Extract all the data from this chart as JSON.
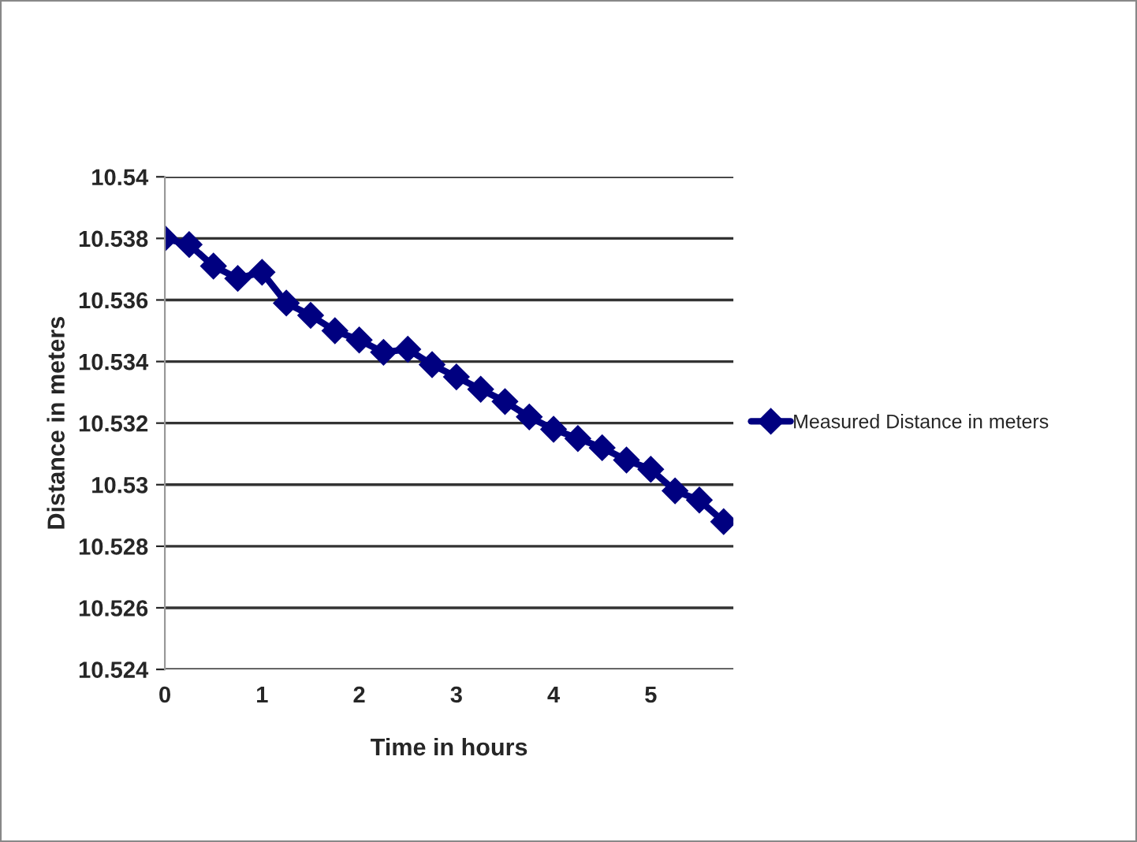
{
  "chart_data": {
    "type": "line",
    "xlabel": "Time in hours",
    "ylabel": "Distance in meters",
    "x": [
      0,
      0.25,
      0.5,
      0.75,
      1,
      1.25,
      1.5,
      1.75,
      2,
      2.25,
      2.5,
      2.75,
      3,
      3.25,
      3.5,
      3.75,
      4,
      4.25,
      4.5,
      4.75,
      5,
      5.25,
      5.5,
      5.75
    ],
    "series": [
      {
        "name": "Measured Distance in meters",
        "color": "#000080",
        "values": [
          10.538,
          10.5378,
          10.5371,
          10.5367,
          10.5369,
          10.5359,
          10.5355,
          10.535,
          10.5347,
          10.5343,
          10.5344,
          10.5339,
          10.5335,
          10.5331,
          10.5327,
          10.5322,
          10.5318,
          10.5315,
          10.5312,
          10.5308,
          10.5305,
          10.5298,
          10.5295,
          10.5288
        ]
      }
    ],
    "xlim": [
      0,
      5.85
    ],
    "xticks": [
      0,
      1,
      2,
      3,
      4,
      5
    ],
    "ylim": [
      10.524,
      10.54
    ],
    "yticks": [
      10.524,
      10.526,
      10.528,
      10.53,
      10.532,
      10.534,
      10.536,
      10.538,
      10.54
    ],
    "grid": "y",
    "legend": "right",
    "marker": "diamond",
    "line_style": "solid"
  }
}
